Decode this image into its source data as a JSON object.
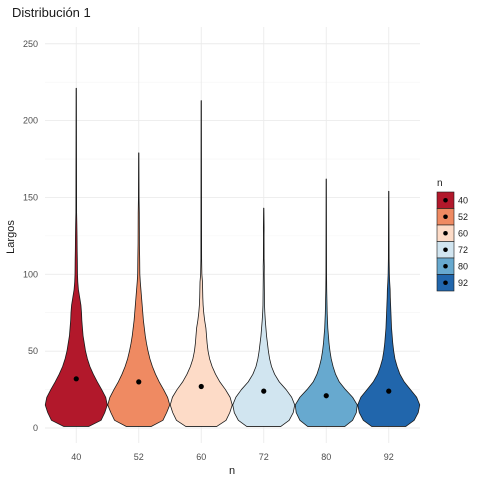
{
  "chart_data": {
    "type": "violin",
    "title": "Distribución 1",
    "xlabel": "n",
    "ylabel": "Largos",
    "categories": [
      "40",
      "52",
      "60",
      "72",
      "80",
      "92"
    ],
    "ylim": [
      0,
      255
    ],
    "yticks": [
      0,
      50,
      100,
      150,
      200,
      250
    ],
    "grid": true,
    "legend": {
      "title": "n",
      "position": "right",
      "entries": [
        "40",
        "52",
        "60",
        "72",
        "80",
        "92"
      ]
    },
    "fill_colors": [
      "#b2182b",
      "#ef8a62",
      "#fddbc7",
      "#d1e5f0",
      "#67a9cf",
      "#2166ac"
    ],
    "series": [
      {
        "category": "40",
        "mean": 32,
        "max": 221,
        "profile": [
          [
            1,
            0.4
          ],
          [
            5,
            0.8
          ],
          [
            10,
            0.92
          ],
          [
            15,
            1.0
          ],
          [
            20,
            0.95
          ],
          [
            25,
            0.82
          ],
          [
            30,
            0.68
          ],
          [
            35,
            0.55
          ],
          [
            40,
            0.44
          ],
          [
            45,
            0.36
          ],
          [
            50,
            0.3
          ],
          [
            55,
            0.26
          ],
          [
            60,
            0.22
          ],
          [
            65,
            0.2
          ],
          [
            70,
            0.18
          ],
          [
            75,
            0.17
          ],
          [
            80,
            0.15
          ],
          [
            85,
            0.11
          ],
          [
            90,
            0.07
          ],
          [
            95,
            0.05
          ],
          [
            100,
            0.04
          ],
          [
            110,
            0.035
          ],
          [
            115,
            0.03
          ],
          [
            125,
            0.025
          ],
          [
            132,
            0.02
          ],
          [
            140,
            0.012
          ],
          [
            160,
            0.01
          ],
          [
            221,
            0.005
          ]
        ]
      },
      {
        "category": "52",
        "mean": 30,
        "max": 179,
        "profile": [
          [
            1,
            0.4
          ],
          [
            5,
            0.78
          ],
          [
            10,
            0.9
          ],
          [
            15,
            1.0
          ],
          [
            20,
            0.93
          ],
          [
            25,
            0.8
          ],
          [
            30,
            0.66
          ],
          [
            35,
            0.54
          ],
          [
            40,
            0.44
          ],
          [
            45,
            0.36
          ],
          [
            50,
            0.3
          ],
          [
            55,
            0.25
          ],
          [
            60,
            0.21
          ],
          [
            65,
            0.18
          ],
          [
            70,
            0.15
          ],
          [
            75,
            0.13
          ],
          [
            80,
            0.11
          ],
          [
            85,
            0.09
          ],
          [
            90,
            0.07
          ],
          [
            95,
            0.05
          ],
          [
            100,
            0.035
          ],
          [
            110,
            0.03
          ],
          [
            120,
            0.022
          ],
          [
            130,
            0.02
          ],
          [
            140,
            0.018
          ],
          [
            150,
            0.01
          ],
          [
            179,
            0.005
          ]
        ]
      },
      {
        "category": "60",
        "mean": 27,
        "max": 213,
        "profile": [
          [
            1,
            0.5
          ],
          [
            5,
            0.8
          ],
          [
            10,
            0.92
          ],
          [
            15,
            1.0
          ],
          [
            20,
            0.93
          ],
          [
            25,
            0.78
          ],
          [
            30,
            0.6
          ],
          [
            35,
            0.46
          ],
          [
            40,
            0.35
          ],
          [
            45,
            0.27
          ],
          [
            50,
            0.22
          ],
          [
            55,
            0.19
          ],
          [
            60,
            0.17
          ],
          [
            65,
            0.15
          ],
          [
            70,
            0.11
          ],
          [
            75,
            0.08
          ],
          [
            80,
            0.06
          ],
          [
            85,
            0.05
          ],
          [
            90,
            0.045
          ],
          [
            95,
            0.04
          ],
          [
            100,
            0.02
          ],
          [
            110,
            0.012
          ],
          [
            213,
            0.005
          ]
        ]
      },
      {
        "category": "72",
        "mean": 24,
        "max": 143,
        "profile": [
          [
            1,
            0.55
          ],
          [
            5,
            0.82
          ],
          [
            10,
            0.95
          ],
          [
            15,
            1.0
          ],
          [
            20,
            0.9
          ],
          [
            25,
            0.72
          ],
          [
            30,
            0.5
          ],
          [
            35,
            0.35
          ],
          [
            40,
            0.25
          ],
          [
            45,
            0.19
          ],
          [
            50,
            0.15
          ],
          [
            55,
            0.12
          ],
          [
            60,
            0.09
          ],
          [
            65,
            0.07
          ],
          [
            70,
            0.05
          ],
          [
            75,
            0.035
          ],
          [
            80,
            0.025
          ],
          [
            90,
            0.02
          ],
          [
            100,
            0.015
          ],
          [
            105,
            0.018
          ],
          [
            110,
            0.012
          ],
          [
            125,
            0.01
          ],
          [
            130,
            0.012
          ],
          [
            143,
            0.005
          ]
        ]
      },
      {
        "category": "80",
        "mean": 21,
        "max": 162,
        "profile": [
          [
            1,
            0.6
          ],
          [
            5,
            0.85
          ],
          [
            10,
            0.97
          ],
          [
            15,
            1.0
          ],
          [
            20,
            0.85
          ],
          [
            25,
            0.62
          ],
          [
            30,
            0.42
          ],
          [
            35,
            0.3
          ],
          [
            40,
            0.22
          ],
          [
            45,
            0.16
          ],
          [
            50,
            0.12
          ],
          [
            55,
            0.09
          ],
          [
            60,
            0.07
          ],
          [
            65,
            0.05
          ],
          [
            70,
            0.04
          ],
          [
            75,
            0.03
          ],
          [
            80,
            0.025
          ],
          [
            90,
            0.015
          ],
          [
            100,
            0.01
          ],
          [
            162,
            0.005
          ]
        ]
      },
      {
        "category": "92",
        "mean": 24,
        "max": 154,
        "profile": [
          [
            1,
            0.55
          ],
          [
            5,
            0.82
          ],
          [
            10,
            0.95
          ],
          [
            15,
            1.0
          ],
          [
            20,
            0.9
          ],
          [
            25,
            0.7
          ],
          [
            30,
            0.5
          ],
          [
            35,
            0.36
          ],
          [
            40,
            0.27
          ],
          [
            45,
            0.2
          ],
          [
            50,
            0.16
          ],
          [
            55,
            0.13
          ],
          [
            60,
            0.11
          ],
          [
            65,
            0.09
          ],
          [
            70,
            0.08
          ],
          [
            75,
            0.07
          ],
          [
            80,
            0.06
          ],
          [
            85,
            0.05
          ],
          [
            90,
            0.045
          ],
          [
            95,
            0.03
          ],
          [
            100,
            0.02
          ],
          [
            110,
            0.012
          ],
          [
            154,
            0.005
          ]
        ]
      }
    ]
  }
}
